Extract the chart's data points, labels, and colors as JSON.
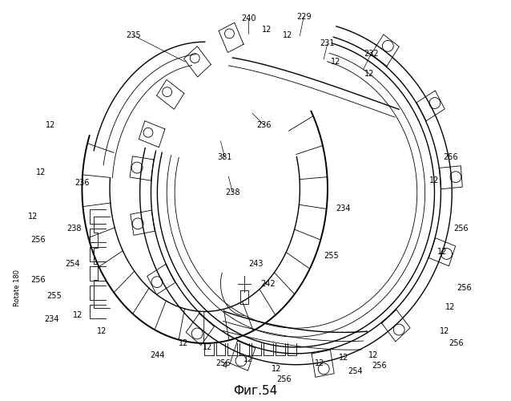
{
  "title": "Фиг.54",
  "bg_color": "#ffffff",
  "title_fontsize": 11,
  "label_fontsize": 7,
  "rotate180_text": "Rotate 180",
  "fig_width": 6.38,
  "fig_height": 5.0,
  "dpi": 100
}
